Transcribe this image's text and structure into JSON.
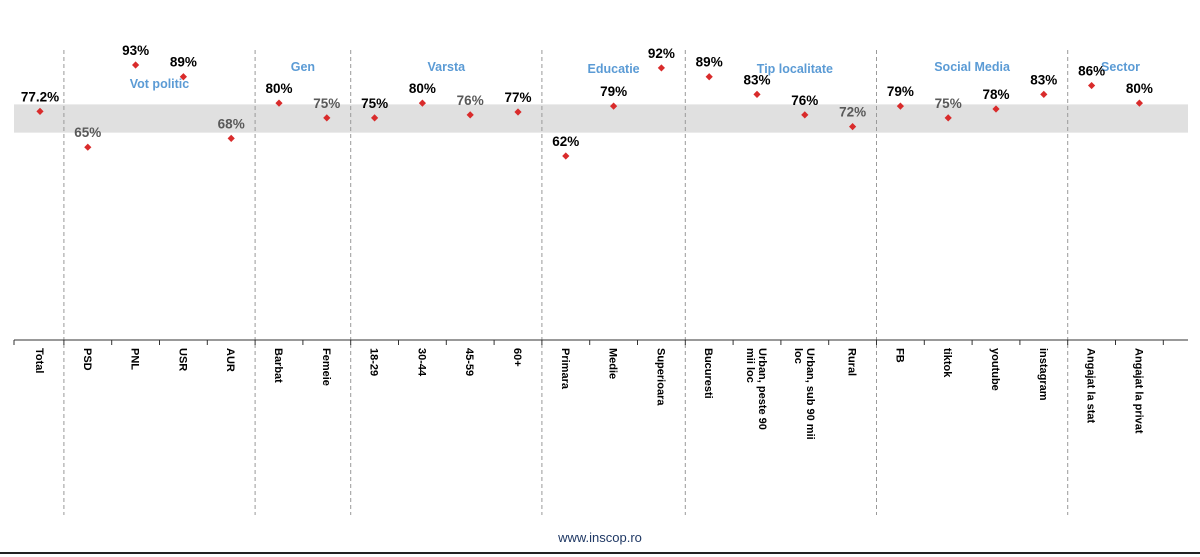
{
  "chart_data": {
    "type": "scatter",
    "title": "",
    "xlabel": "",
    "ylabel": "",
    "ylim": [
      0,
      100
    ],
    "average_band": [
      72,
      77.2
    ],
    "marker_color": "#d92b2b",
    "band_color": "#e0e0e0",
    "group_label_color": "#5b9bd5",
    "categories": [
      "Total",
      "PSD",
      "PNL",
      "USR",
      "AUR",
      "Barbat",
      "Femeie",
      "18-29",
      "30-44",
      "45-59",
      "60+",
      "Primara",
      "Medie",
      "Superioara",
      "Bucuresti",
      "Urban, peste 90 mii loc",
      "Urban, sub 90 mii loc",
      "Rural",
      "FB",
      "tiktok",
      "youtube",
      "instagram",
      "Angajat la stat",
      "Angajat la privat"
    ],
    "values": [
      77.2,
      65,
      93,
      89,
      68,
      80,
      75,
      75,
      80,
      76,
      77,
      62,
      79,
      92,
      89,
      83,
      76,
      72,
      79,
      75,
      78,
      83,
      86,
      80
    ],
    "value_labels": [
      "77.2%",
      "65%",
      "93%",
      "89%",
      "68%",
      "80%",
      "75%",
      "75%",
      "80%",
      "76%",
      "77%",
      "62%",
      "79%",
      "92%",
      "89%",
      "83%",
      "76%",
      "72%",
      "79%",
      "75%",
      "78%",
      "83%",
      "86%",
      "80%"
    ],
    "gray_labels": [
      1,
      4,
      6,
      9,
      17,
      19
    ],
    "groups": [
      {
        "name": "Vot politic",
        "start": 1,
        "end": 4
      },
      {
        "name": "Gen",
        "start": 5,
        "end": 6
      },
      {
        "name": "Varsta",
        "start": 7,
        "end": 10
      },
      {
        "name": "Educatie",
        "start": 11,
        "end": 13
      },
      {
        "name": "Tip localitate",
        "start": 14,
        "end": 17
      },
      {
        "name": "Social Media",
        "start": 18,
        "end": 21
      },
      {
        "name": "Sector",
        "start": 22,
        "end": 23
      }
    ]
  },
  "footer": {
    "url": "www.inscop.ro"
  }
}
